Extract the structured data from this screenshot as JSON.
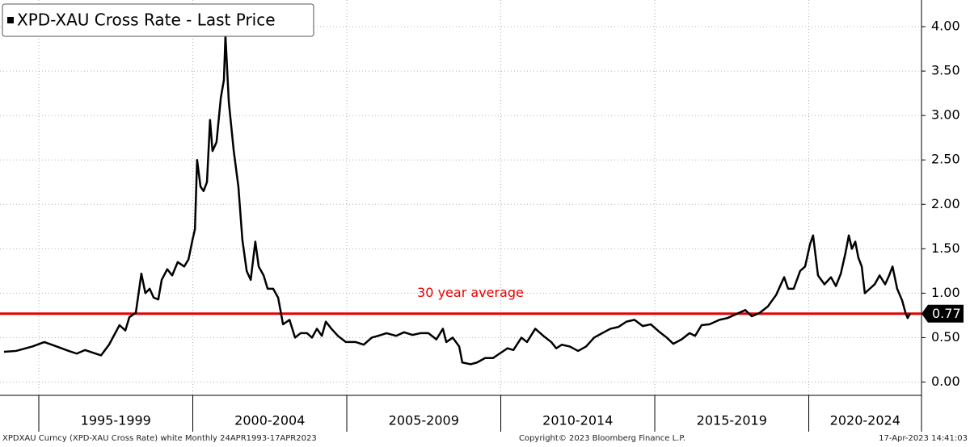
{
  "chart_data": {
    "type": "line",
    "series": [
      {
        "name": "XPD-XAU Cross Rate - Last Price",
        "color": "#000000",
        "x": [
          1993.87,
          1994.26,
          1994.79,
          1995.18,
          1995.58,
          1995.97,
          1996.23,
          1996.5,
          1996.76,
          1997.02,
          1997.28,
          1997.62,
          1997.81,
          1997.94,
          1998.15,
          1998.33,
          1998.46,
          1998.6,
          1998.73,
          1998.88,
          1998.99,
          1999.17,
          1999.33,
          1999.51,
          1999.72,
          1999.86,
          1999.99,
          2000.07,
          2000.14,
          2000.25,
          2000.35,
          2000.46,
          2000.56,
          2000.64,
          2000.77,
          2000.91,
          2001.01,
          2001.06,
          2001.17,
          2001.33,
          2001.48,
          2001.61,
          2001.75,
          2001.88,
          2002.03,
          2002.14,
          2002.3,
          2002.43,
          2002.61,
          2002.77,
          2002.93,
          2003.14,
          2003.32,
          2003.5,
          2003.71,
          2003.87,
          2004.03,
          2004.19,
          2004.32,
          2004.5,
          2004.71,
          2004.97,
          2005.29,
          2005.55,
          2005.81,
          2006.02,
          2006.29,
          2006.6,
          2006.86,
          2007.13,
          2007.39,
          2007.65,
          2007.91,
          2008.12,
          2008.23,
          2008.44,
          2008.65,
          2008.75,
          2009.02,
          2009.23,
          2009.49,
          2009.75,
          2009.96,
          2010.22,
          2010.41,
          2010.67,
          2010.85,
          2011.12,
          2011.38,
          2011.64,
          2011.8,
          2011.98,
          2012.24,
          2012.51,
          2012.77,
          2013.03,
          2013.29,
          2013.56,
          2013.82,
          2014.08,
          2014.34,
          2014.61,
          2014.87,
          2015.13,
          2015.39,
          2015.6,
          2015.87,
          2016.13,
          2016.31,
          2016.52,
          2016.78,
          2017.1,
          2017.36,
          2017.68,
          2017.94,
          2018.15,
          2018.41,
          2018.67,
          2018.94,
          2019.2,
          2019.33,
          2019.51,
          2019.72,
          2019.88,
          2020.04,
          2020.14,
          2020.3,
          2020.51,
          2020.72,
          2020.88,
          2021.04,
          2021.19,
          2021.3,
          2021.4,
          2021.51,
          2021.61,
          2021.72,
          2021.82,
          2021.98,
          2022.14,
          2022.3,
          2022.48,
          2022.61,
          2022.72,
          2022.87,
          2023.03,
          2023.14,
          2023.21,
          2023.29
        ],
        "values": [
          0.34,
          0.35,
          0.4,
          0.45,
          0.4,
          0.35,
          0.32,
          0.36,
          0.33,
          0.3,
          0.42,
          0.64,
          0.58,
          0.73,
          0.78,
          1.22,
          1.0,
          1.05,
          0.95,
          0.93,
          1.15,
          1.27,
          1.2,
          1.35,
          1.3,
          1.38,
          1.6,
          1.72,
          2.5,
          2.2,
          2.15,
          2.25,
          2.95,
          2.6,
          2.7,
          3.2,
          3.4,
          3.9,
          3.15,
          2.6,
          2.2,
          1.6,
          1.25,
          1.15,
          1.58,
          1.3,
          1.2,
          1.05,
          1.05,
          0.95,
          0.65,
          0.7,
          0.5,
          0.55,
          0.55,
          0.5,
          0.6,
          0.52,
          0.68,
          0.6,
          0.52,
          0.45,
          0.45,
          0.42,
          0.5,
          0.52,
          0.55,
          0.52,
          0.56,
          0.53,
          0.55,
          0.55,
          0.48,
          0.6,
          0.45,
          0.5,
          0.4,
          0.22,
          0.2,
          0.22,
          0.27,
          0.27,
          0.32,
          0.38,
          0.36,
          0.5,
          0.45,
          0.6,
          0.52,
          0.45,
          0.38,
          0.42,
          0.4,
          0.35,
          0.4,
          0.5,
          0.55,
          0.6,
          0.62,
          0.68,
          0.7,
          0.63,
          0.65,
          0.57,
          0.5,
          0.43,
          0.48,
          0.55,
          0.52,
          0.64,
          0.65,
          0.7,
          0.72,
          0.77,
          0.81,
          0.74,
          0.78,
          0.85,
          0.98,
          1.18,
          1.05,
          1.05,
          1.25,
          1.3,
          1.55,
          1.65,
          1.2,
          1.1,
          1.18,
          1.08,
          1.22,
          1.45,
          1.65,
          1.5,
          1.58,
          1.4,
          1.3,
          1.0,
          1.05,
          1.1,
          1.2,
          1.1,
          1.2,
          1.3,
          1.05,
          0.92,
          0.78,
          0.72,
          0.77
        ]
      }
    ],
    "average": {
      "value": 0.77,
      "color": "#e60000",
      "annotation": "30 year average"
    },
    "xlim": [
      1993.74,
      2023.66
    ],
    "ylim": [
      -0.15,
      4.3
    ],
    "yticks": [
      {
        "value": 0,
        "label": "0.00"
      },
      {
        "value": 0.5,
        "label": "0.50"
      },
      {
        "value": 1,
        "label": "1.00"
      },
      {
        "value": 1.5,
        "label": "1.50"
      },
      {
        "value": 2,
        "label": "2.00"
      },
      {
        "value": 2.5,
        "label": "2.50"
      },
      {
        "value": 3,
        "label": "3.00"
      },
      {
        "value": 3.5,
        "label": "3.50"
      },
      {
        "value": 4,
        "label": "4.00"
      }
    ],
    "periods": [
      {
        "label": "1995-1999",
        "start": 1995,
        "end": 2000
      },
      {
        "label": "2000-2004",
        "start": 2000,
        "end": 2005
      },
      {
        "label": "2005-2009",
        "start": 2005,
        "end": 2010
      },
      {
        "label": "2010-2014",
        "start": 2010,
        "end": 2015
      },
      {
        "label": "2015-2019",
        "start": 2015,
        "end": 2020
      },
      {
        "label": "2020-2024",
        "start": 2020,
        "end": 2025
      }
    ],
    "grid": true
  },
  "footer": {
    "left": "XPDXAU Curncy (XPD-XAU Cross Rate) white  Monthly 24APR1993-17APR2023",
    "center": "Copyright© 2023 Bloomberg Finance L.P.",
    "right": "17-Apr-2023 14:41:03"
  }
}
